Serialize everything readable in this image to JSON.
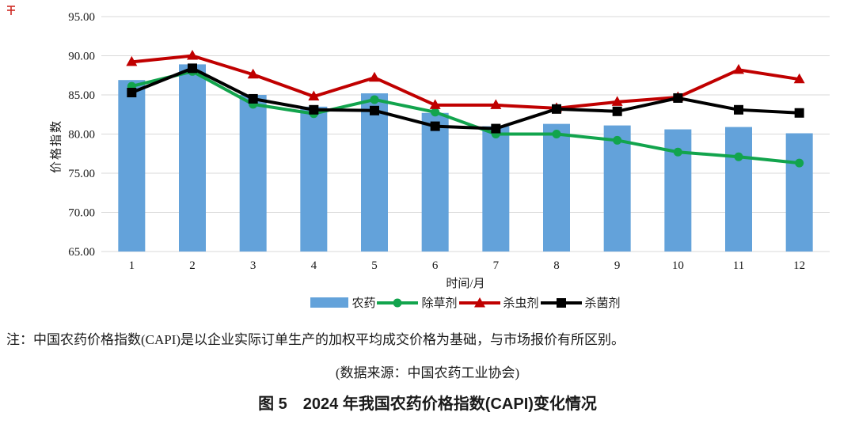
{
  "page": {
    "note": "注：中国农药价格指数(CAPI)是以企业实际订单生产的加权平均成交价格为基础，与市场报价有所区别。",
    "source": "(数据来源：中国农药工业协会)",
    "caption": "图 5　2024 年我国农药价格指数(CAPI)变化情况"
  },
  "chart_data": {
    "type": "combo-bar-line",
    "title": "",
    "xlabel": "时间/月",
    "ylabel": "价格指数",
    "ylim": [
      65,
      95
    ],
    "ytick_step": 5,
    "ytick_labels": [
      "95.00",
      "90.00",
      "85.00",
      "80.00",
      "75.00",
      "70.00",
      "65.00"
    ],
    "grid": true,
    "legend_position": "bottom",
    "categories": [
      "1",
      "2",
      "3",
      "4",
      "5",
      "6",
      "7",
      "8",
      "9",
      "10",
      "11",
      "12"
    ],
    "series": [
      {
        "name": "农药",
        "type": "bar",
        "color": "#63a2da",
        "values": [
          86.9,
          88.9,
          85.0,
          83.5,
          85.2,
          82.7,
          81.0,
          81.3,
          81.1,
          80.6,
          80.9,
          80.1
        ]
      },
      {
        "name": "除草剂",
        "type": "line",
        "marker": "circle",
        "color": "#12a44d",
        "values": [
          86.1,
          88.0,
          83.8,
          82.6,
          84.4,
          82.8,
          80.0,
          80.0,
          79.2,
          77.7,
          77.1,
          76.3
        ]
      },
      {
        "name": "杀虫剂",
        "type": "line",
        "marker": "triangle",
        "color": "#c00000",
        "values": [
          89.2,
          90.0,
          87.6,
          84.8,
          87.2,
          83.7,
          83.7,
          83.3,
          84.1,
          84.7,
          88.2,
          87.0
        ]
      },
      {
        "name": "杀菌剂",
        "type": "line",
        "marker": "square",
        "color": "#000000",
        "values": [
          85.3,
          88.4,
          84.5,
          83.1,
          83.0,
          81.0,
          80.7,
          83.2,
          82.9,
          84.6,
          83.1,
          82.7
        ]
      }
    ]
  }
}
